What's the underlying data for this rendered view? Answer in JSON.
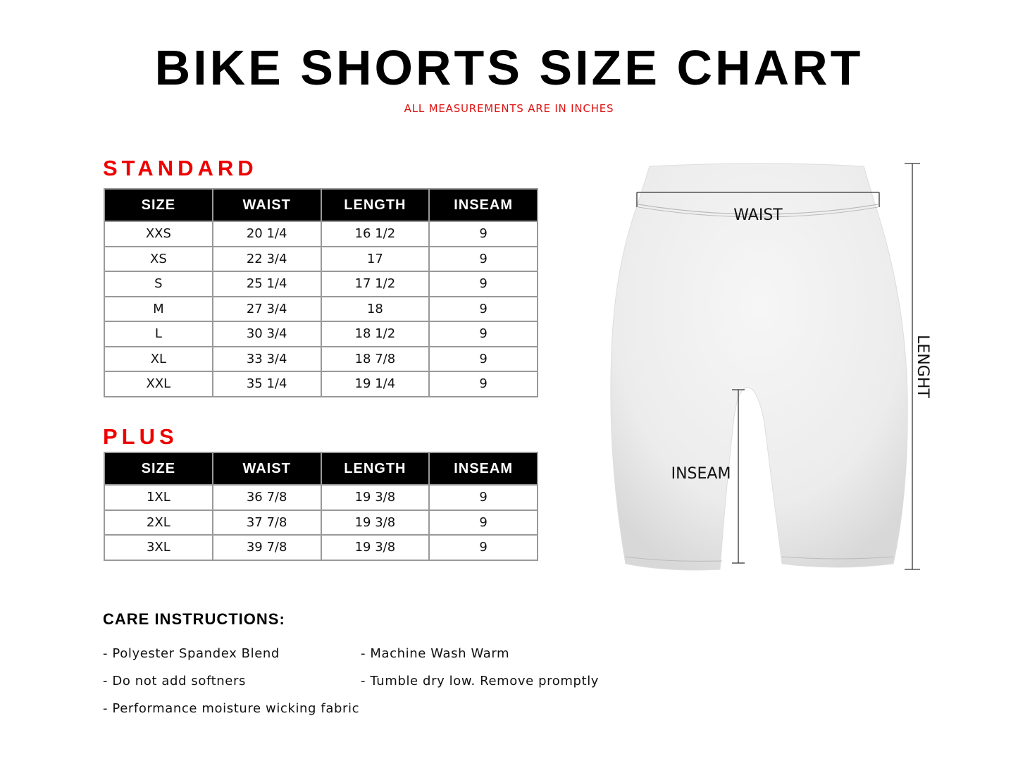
{
  "title": "BIKE SHORTS SIZE CHART",
  "subtitle": "ALL MEASUREMENTS ARE IN INCHES",
  "headers": [
    "SIZE",
    "WAIST",
    "LENGTH",
    "INSEAM"
  ],
  "standard": {
    "label": "STANDARD",
    "rows": [
      [
        "XXS",
        "20 1/4",
        "16 1/2",
        "9"
      ],
      [
        "XS",
        "22 3/4",
        "17",
        "9"
      ],
      [
        "S",
        "25 1/4",
        "17 1/2",
        "9"
      ],
      [
        "M",
        "27 3/4",
        "18",
        "9"
      ],
      [
        "L",
        "30 3/4",
        "18 1/2",
        "9"
      ],
      [
        "XL",
        "33 3/4",
        "18 7/8",
        "9"
      ],
      [
        "XXL",
        "35 1/4",
        "19 1/4",
        "9"
      ]
    ]
  },
  "plus": {
    "label": "PLUS",
    "rows": [
      [
        "1XL",
        "36 7/8",
        "19 3/8",
        "9"
      ],
      [
        "2XL",
        "37 7/8",
        "19 3/8",
        "9"
      ],
      [
        "3XL",
        "39 7/8",
        "19 3/8",
        "9"
      ]
    ]
  },
  "diagram": {
    "waist": "WAIST",
    "inseam": "INSEAM",
    "length": "LENGHT"
  },
  "care": {
    "heading": "CARE INSTRUCTIONS:",
    "items": [
      "- Polyester Spandex Blend",
      "- Machine Wash Warm",
      "- Do not add softners",
      "- Tumble dry low. Remove promptly",
      "- Performance moisture wicking fabric"
    ]
  },
  "colors": {
    "accent": "#ee0000",
    "header_bg": "#000000",
    "border": "#999999"
  }
}
